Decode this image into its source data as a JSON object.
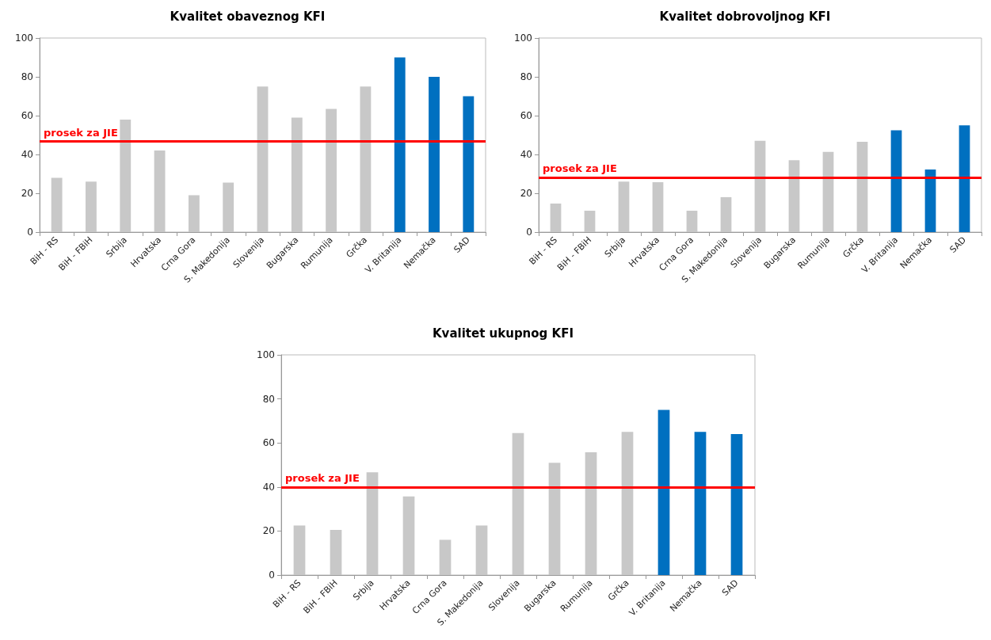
{
  "chart_data": [
    {
      "type": "bar",
      "title": "Kvalitet obaveznog KFI",
      "categories": [
        "BiH - RS",
        "BiH - FBiH",
        "Srbija",
        "Hrvatska",
        "Crna Gora",
        "S. Makedonija",
        "Slovenija",
        "Bugarska",
        "Rumunija",
        "Grčka",
        "V. Britanija",
        "Nemačka",
        "SAD"
      ],
      "values": [
        28,
        26,
        58,
        42,
        19,
        25.5,
        75,
        59,
        63.5,
        75,
        90,
        80,
        70
      ],
      "colors": [
        "#c8c8c8",
        "#c8c8c8",
        "#c8c8c8",
        "#c8c8c8",
        "#c8c8c8",
        "#c8c8c8",
        "#c8c8c8",
        "#c8c8c8",
        "#c8c8c8",
        "#c8c8c8",
        "#0070c0",
        "#0070c0",
        "#0070c0"
      ],
      "ylim": [
        0,
        100
      ],
      "yticks": [
        0,
        20,
        40,
        60,
        80,
        100
      ],
      "grid": false,
      "ref_lines": [
        {
          "axis": "y",
          "value": 46.7,
          "label": "prosek za JIE",
          "color": "#ff0000"
        }
      ]
    },
    {
      "type": "bar",
      "title": "Kvalitet dobrovoljnog KFI",
      "categories": [
        "BiH - RS",
        "BiH - FBiH",
        "Srbija",
        "Hrvatska",
        "Crna Gora",
        "S. Makedonija",
        "Slovenija",
        "Bugarska",
        "Rumunija",
        "Grčka",
        "V. Britanija",
        "Nemačka",
        "SAD"
      ],
      "values": [
        14.7,
        11,
        26,
        25.7,
        11,
        18,
        47,
        37,
        41.3,
        46.5,
        52.5,
        32.2,
        55
      ],
      "colors": [
        "#c8c8c8",
        "#c8c8c8",
        "#c8c8c8",
        "#c8c8c8",
        "#c8c8c8",
        "#c8c8c8",
        "#c8c8c8",
        "#c8c8c8",
        "#c8c8c8",
        "#c8c8c8",
        "#0070c0",
        "#0070c0",
        "#0070c0"
      ],
      "ylim": [
        0,
        100
      ],
      "yticks": [
        0,
        20,
        40,
        60,
        80,
        100
      ],
      "grid": false,
      "ref_lines": [
        {
          "axis": "y",
          "value": 28,
          "label": "prosek za JIE",
          "color": "#ff0000"
        }
      ]
    },
    {
      "type": "bar",
      "title": "Kvalitet ukupnog KFI",
      "categories": [
        "BiH - RS",
        "BiH - FBiH",
        "Srbija",
        "Hrvatska",
        "Crna Gora",
        "S. Makedonija",
        "Slovenija",
        "Bugarska",
        "Rumunija",
        "Grčka",
        "V. Britanija",
        "Nemačka",
        "SAD"
      ],
      "values": [
        22.5,
        20.5,
        46.7,
        35.7,
        16,
        22.5,
        64.5,
        51,
        55.8,
        65,
        75,
        65,
        64
      ],
      "colors": [
        "#c8c8c8",
        "#c8c8c8",
        "#c8c8c8",
        "#c8c8c8",
        "#c8c8c8",
        "#c8c8c8",
        "#c8c8c8",
        "#c8c8c8",
        "#c8c8c8",
        "#c8c8c8",
        "#0070c0",
        "#0070c0",
        "#0070c0"
      ],
      "ylim": [
        0,
        100
      ],
      "yticks": [
        0,
        20,
        40,
        60,
        80,
        100
      ],
      "grid": false,
      "ref_lines": [
        {
          "axis": "y",
          "value": 40,
          "label": "prosek za JIE",
          "color": "#ff0000"
        }
      ]
    }
  ]
}
